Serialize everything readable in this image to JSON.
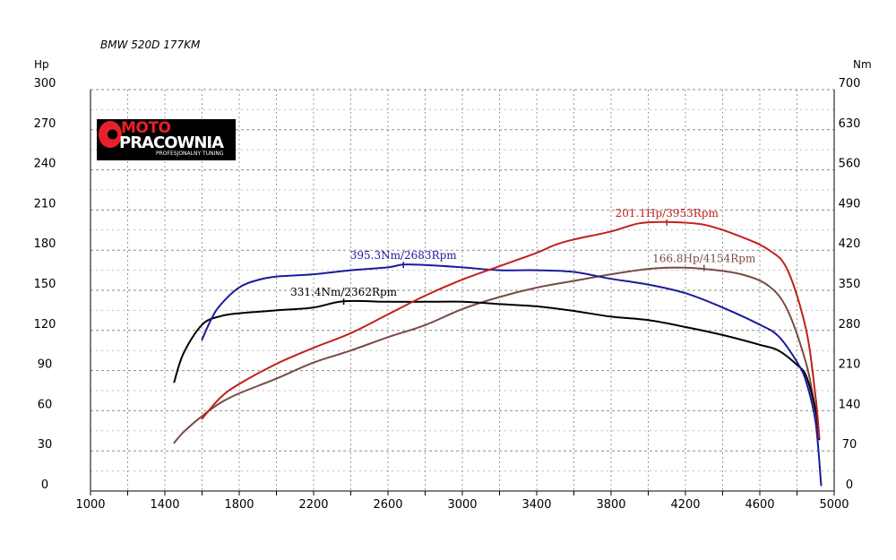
{
  "chart_data": {
    "type": "line",
    "title": "BMW 520D 177KM",
    "xlabel": "",
    "ylabel_left": "Hp",
    "ylabel_right": "Nm",
    "xlim": [
      1000,
      5000
    ],
    "ylim_left": [
      0,
      300
    ],
    "ylim_right": [
      0,
      700
    ],
    "x_ticks": [
      1000,
      1400,
      1800,
      2200,
      2600,
      3000,
      3400,
      3800,
      4200,
      4600,
      5000
    ],
    "y_ticks_left": [
      0,
      30,
      60,
      90,
      120,
      150,
      180,
      210,
      240,
      270,
      300
    ],
    "y_ticks_right": [
      0,
      70,
      140,
      210,
      280,
      350,
      420,
      490,
      560,
      630,
      700
    ],
    "grid": true,
    "colors": {
      "power_tuned": "#c0201e",
      "torque_tuned": "#1a1a9c",
      "power_stock": "#7a4a44",
      "torque_stock": "#000000"
    },
    "series": [
      {
        "key": "power_tuned",
        "axis": "left",
        "x": [
          1600,
          1700,
          1800,
          2000,
          2200,
          2400,
          2600,
          2800,
          3000,
          3200,
          3400,
          3500,
          3600,
          3800,
          3950,
          4100,
          4300,
          4500,
          4650,
          4750,
          4850,
          4900,
          4920
        ],
        "y": [
          54,
          70,
          80,
          95,
          107,
          118,
          132,
          146,
          158,
          168,
          178,
          184,
          188,
          194,
          200,
          201,
          199,
          190,
          180,
          165,
          120,
          70,
          40
        ]
      },
      {
        "key": "torque_tuned",
        "axis": "right",
        "x": [
          1600,
          1650,
          1700,
          1800,
          1900,
          2000,
          2200,
          2400,
          2600,
          2683,
          2800,
          3000,
          3200,
          3400,
          3600,
          3800,
          4000,
          4200,
          4400,
          4600,
          4700,
          4800,
          4850,
          4900,
          4930
        ],
        "y": [
          264,
          300,
          325,
          355,
          368,
          374,
          378,
          385,
          390,
          395,
          394,
          390,
          385,
          385,
          382,
          370,
          360,
          345,
          320,
          290,
          270,
          225,
          190,
          120,
          10
        ]
      },
      {
        "key": "power_stock",
        "axis": "left",
        "x": [
          1450,
          1500,
          1600,
          1700,
          1800,
          2000,
          2200,
          2400,
          2600,
          2800,
          3000,
          3200,
          3400,
          3600,
          3800,
          4000,
          4154,
          4300,
          4500,
          4650,
          4750,
          4850,
          4900
        ],
        "y": [
          36,
          44,
          56,
          66,
          73,
          84,
          96,
          105,
          115,
          124,
          136,
          145,
          152,
          157,
          162,
          166,
          167,
          166,
          162,
          153,
          135,
          95,
          60
        ]
      },
      {
        "key": "torque_stock",
        "axis": "right",
        "x": [
          1450,
          1500,
          1600,
          1700,
          1800,
          2000,
          2200,
          2362,
          2600,
          2800,
          3000,
          3200,
          3400,
          3600,
          3800,
          4000,
          4200,
          4400,
          4600,
          4700,
          4800,
          4850,
          4900,
          4920
        ],
        "y": [
          190,
          240,
          290,
          305,
          310,
          315,
          320,
          331,
          330,
          330,
          330,
          326,
          322,
          314,
          304,
          298,
          286,
          272,
          255,
          245,
          220,
          200,
          140,
          90
        ]
      }
    ],
    "annotations": [
      {
        "series": "power_tuned",
        "x": 4100,
        "y": 201,
        "text": "201.1Hp/3953Rpm",
        "color": "#c0201e"
      },
      {
        "series": "torque_tuned",
        "x": 2683,
        "y": 395,
        "text": "395.3Nm/2683Rpm",
        "color": "#1a1a9c"
      },
      {
        "series": "power_stock",
        "x": 4300,
        "y": 167,
        "text": "166.8Hp/4154Rpm",
        "color": "#7a4a44"
      },
      {
        "series": "torque_stock",
        "x": 2362,
        "y": 331,
        "text": "331.4Nm/2362Rpm",
        "color": "#000000"
      }
    ]
  },
  "logo": {
    "line1": "MOTO",
    "line2": "PRACOWNIA",
    "line3": "PROFESJONALNY TUNING"
  }
}
